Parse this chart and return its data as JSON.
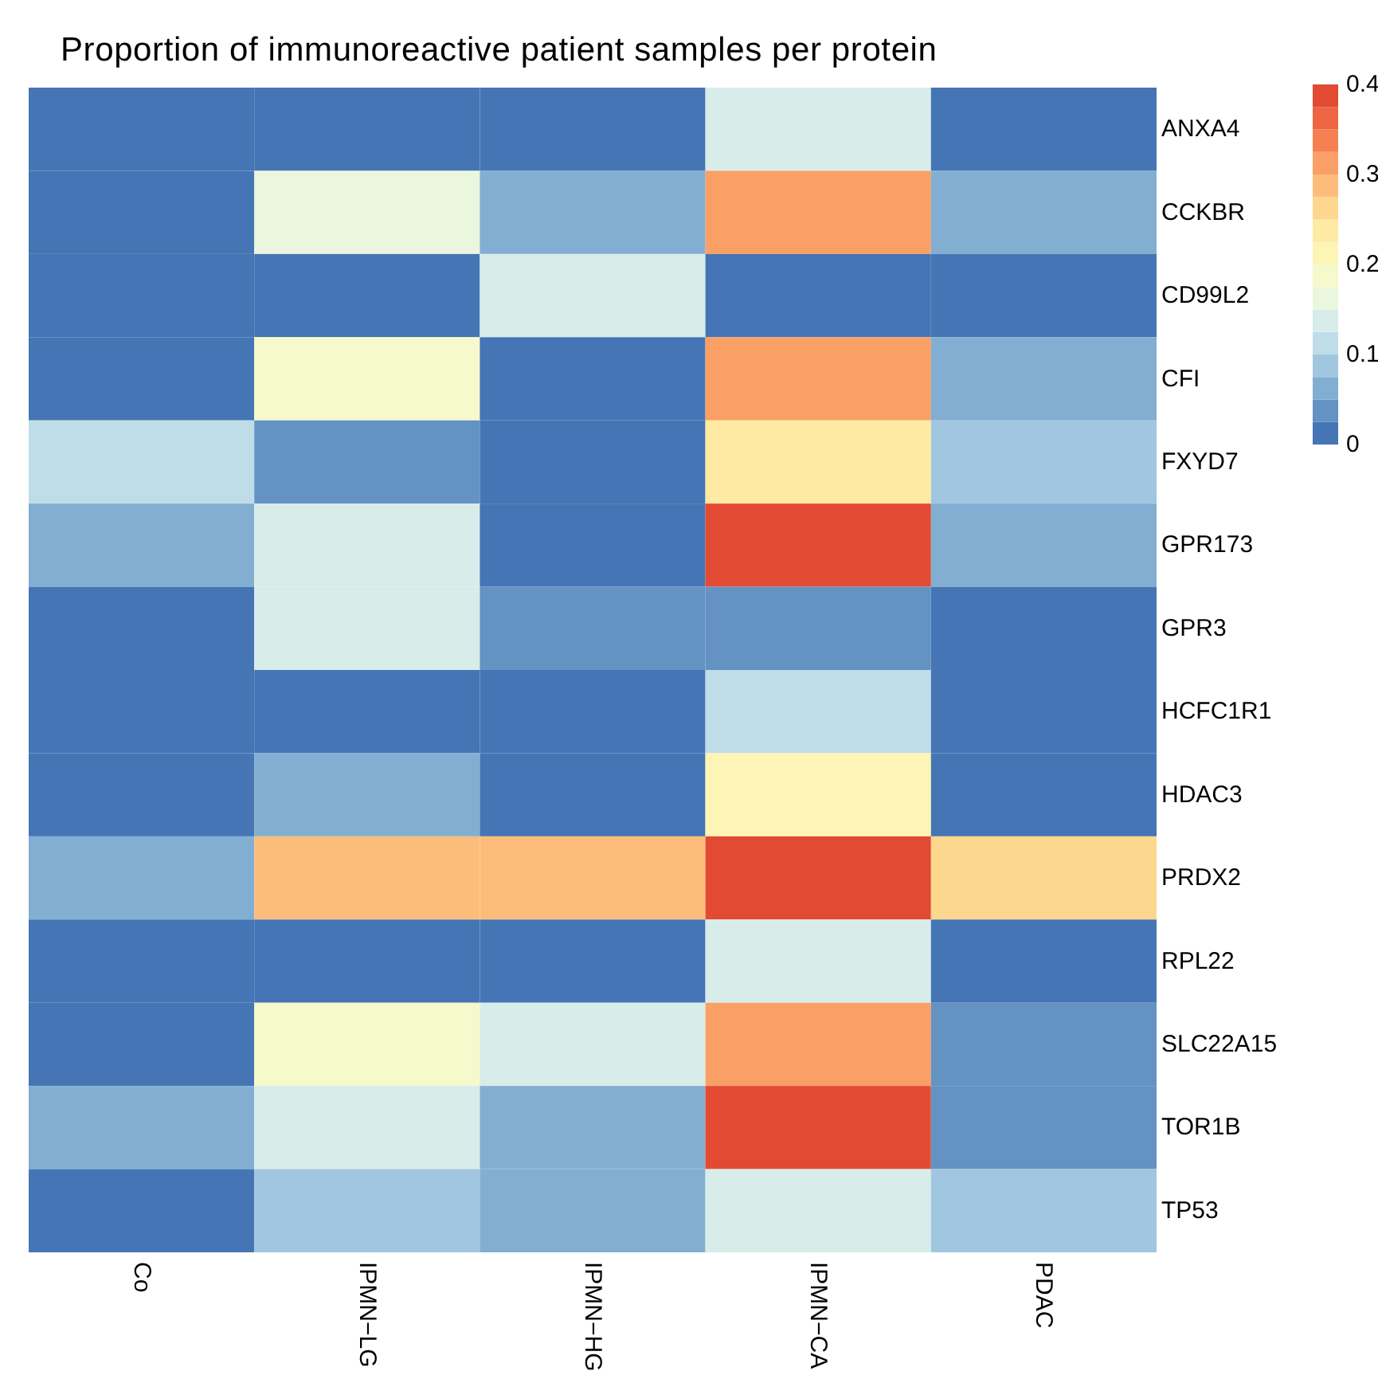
{
  "chart_data": {
    "type": "heatmap",
    "title": "Proportion of immunoreactive patient samples per protein",
    "categories": [
      "Co",
      "IPMN−LG",
      "IPMN−HG",
      "IPMN−CA",
      "PDAC"
    ],
    "y_categories": [
      "ANXA4",
      "CCKBR",
      "CD99L2",
      "CFI",
      "FXYD7",
      "GPR173",
      "GPR3",
      "HCFC1R1",
      "HDAC3",
      "PRDX2",
      "RPL22",
      "SLC22A15",
      "TOR1B",
      "TP53"
    ],
    "cells": [
      [
        0,
        0,
        0,
        0.135,
        0
      ],
      [
        0,
        0.16,
        0.06,
        0.31,
        0.06
      ],
      [
        0,
        0,
        0.135,
        0,
        0
      ],
      [
        0,
        0.185,
        0,
        0.31,
        0.06
      ],
      [
        0.11,
        0.035,
        0,
        0.235,
        0.085
      ],
      [
        0.06,
        0.135,
        0,
        0.39,
        0.06
      ],
      [
        0,
        0.135,
        0.035,
        0.035,
        0
      ],
      [
        0,
        0,
        0,
        0.11,
        0
      ],
      [
        0,
        0.06,
        0,
        0.21,
        0
      ],
      [
        0.06,
        0.285,
        0.285,
        0.39,
        0.26
      ],
      [
        0,
        0,
        0,
        0.135,
        0
      ],
      [
        0,
        0.185,
        0.135,
        0.31,
        0.035
      ],
      [
        0.06,
        0.135,
        0.06,
        0.39,
        0.035
      ],
      [
        0,
        0.085,
        0.06,
        0.135,
        0.085
      ]
    ],
    "clim": [
      0,
      0.4
    ],
    "cticks": [
      0,
      0.1,
      0.2,
      0.3,
      0.4
    ]
  }
}
